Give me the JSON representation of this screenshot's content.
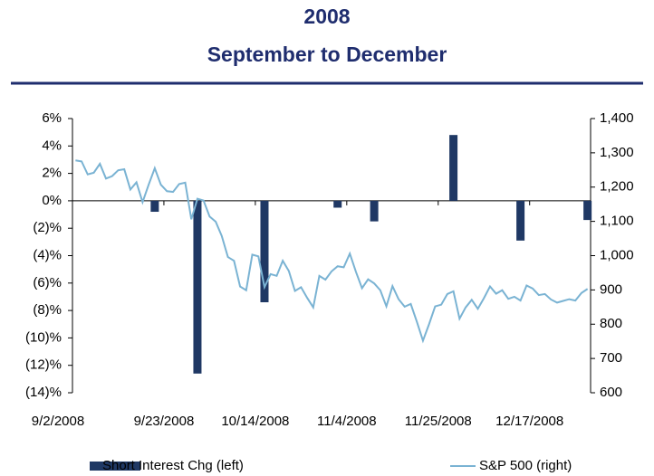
{
  "chart_data": {
    "type": "bar-line",
    "title": "2008",
    "subtitle": "September to December",
    "categories": [
      "9/2/2008",
      null,
      null,
      null,
      null,
      null,
      null,
      null,
      null,
      null,
      null,
      null,
      null,
      null,
      null,
      "9/23/2008",
      null,
      null,
      null,
      null,
      null,
      null,
      null,
      null,
      null,
      null,
      null,
      null,
      null,
      null,
      "10/14/2008",
      null,
      null,
      null,
      null,
      null,
      null,
      null,
      null,
      null,
      null,
      null,
      null,
      null,
      null,
      "11/4/2008",
      null,
      null,
      null,
      null,
      null,
      null,
      null,
      null,
      null,
      null,
      null,
      null,
      null,
      null,
      "11/25/2008",
      null,
      null,
      null,
      null,
      null,
      null,
      null,
      null,
      null,
      null,
      null,
      null,
      null,
      null,
      "12/17/2008",
      null,
      null,
      null,
      null,
      null,
      null,
      null,
      null,
      null
    ],
    "series": [
      {
        "name": "Short Interest Chg (left)",
        "color": "#1f3864",
        "kind": "bar",
        "axis": "y",
        "values": [
          null,
          null,
          null,
          null,
          null,
          null,
          null,
          null,
          null,
          null,
          null,
          null,
          null,
          -0.8,
          null,
          null,
          null,
          null,
          null,
          null,
          -12.6,
          null,
          null,
          null,
          null,
          null,
          null,
          null,
          null,
          null,
          null,
          -7.4,
          null,
          null,
          null,
          null,
          null,
          null,
          null,
          null,
          null,
          null,
          null,
          -0.5,
          null,
          null,
          null,
          null,
          null,
          -1.5,
          null,
          null,
          null,
          null,
          null,
          null,
          null,
          null,
          null,
          null,
          null,
          null,
          4.8,
          null,
          null,
          null,
          null,
          null,
          null,
          null,
          null,
          null,
          null,
          -2.9,
          null,
          null,
          null,
          null,
          null,
          null,
          null,
          null,
          null,
          null,
          -1.4
        ]
      },
      {
        "name": "S&P 500 (right)",
        "color": "#7ab3d3",
        "kind": "line",
        "axis": "y2",
        "values": [
          1278,
          1275,
          1237,
          1242,
          1268,
          1225,
          1232,
          1249,
          1252,
          1193,
          1214,
          1156,
          1207,
          1255,
          1207,
          1188,
          1186,
          1209,
          1213,
          1106,
          1166,
          1161,
          1114,
          1099,
          1057,
          996,
          985,
          910,
          899,
          1003,
          998,
          908,
          946,
          941,
          985,
          955,
          897,
          908,
          877,
          849,
          941,
          930,
          954,
          969,
          966,
          1006,
          953,
          905,
          931,
          919,
          899,
          852,
          911,
          873,
          851,
          859,
          807,
          752,
          800,
          852,
          857,
          888,
          896,
          816,
          849,
          871,
          845,
          876,
          910,
          889,
          899,
          874,
          880,
          869,
          913,
          904,
          885,
          888,
          872,
          863,
          868,
          873,
          869,
          891,
          903
        ]
      }
    ],
    "ylim": [
      -14,
      6
    ],
    "yticks": [
      {
        "value": -14,
        "label": "(14)%"
      },
      {
        "value": -12,
        "label": "(12)%"
      },
      {
        "value": -10,
        "label": "(10)%"
      },
      {
        "value": -8,
        "label": "(8)%"
      },
      {
        "value": -6,
        "label": "(6)%"
      },
      {
        "value": -4,
        "label": "(4)%"
      },
      {
        "value": -2,
        "label": "(2)%"
      },
      {
        "value": 0,
        "label": "0%"
      },
      {
        "value": 2,
        "label": "2%"
      },
      {
        "value": 4,
        "label": "4%"
      },
      {
        "value": 6,
        "label": "6%"
      }
    ],
    "y2lim": [
      600,
      1400
    ],
    "y2ticks": [
      600,
      700,
      800,
      900,
      {
        "value": 1000,
        "label": "1,000"
      },
      {
        "value": 1100,
        "label": "1,100"
      },
      {
        "value": 1200,
        "label": "1,200"
      },
      {
        "value": 1300,
        "label": "1,300"
      },
      {
        "value": 1400,
        "label": "1,400"
      }
    ],
    "grid": false
  }
}
